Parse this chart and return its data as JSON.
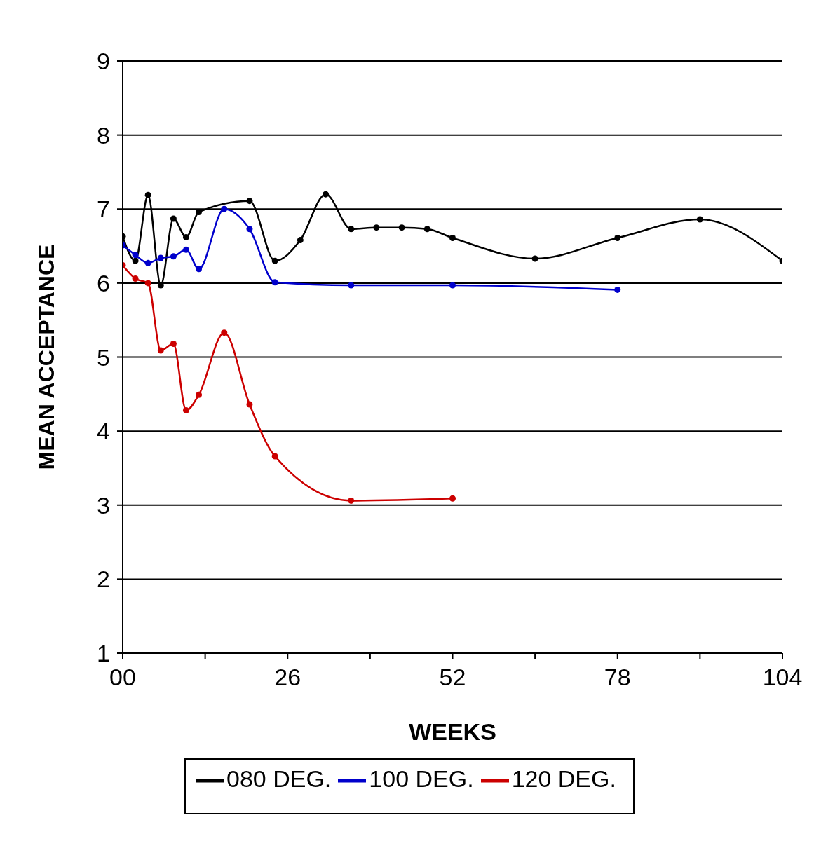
{
  "chart_data": {
    "type": "line",
    "xlabel": "WEEKS",
    "ylabel": "MEAN ACCEPTANCE",
    "xlim": [
      0,
      104
    ],
    "xticks": [
      {
        "value": 0,
        "label": "00"
      },
      {
        "value": 13,
        "label": null
      },
      26,
      {
        "value": 39,
        "label": null
      },
      52,
      {
        "value": 65,
        "label": null
      },
      78,
      {
        "value": 91,
        "label": null
      },
      104
    ],
    "ylim": [
      1,
      9
    ],
    "yticks": [
      1,
      2,
      3,
      4,
      5,
      6,
      7,
      8,
      9
    ],
    "grid": "y",
    "legend": "bottom",
    "marker": "circle",
    "line_style": "solid",
    "series": [
      {
        "name": "080 DEG.",
        "color": "#000000",
        "x": [
          0,
          2,
          4,
          6,
          8,
          10,
          12,
          20,
          24,
          28,
          32,
          36,
          40,
          44,
          48,
          52,
          65,
          78,
          91,
          104
        ],
        "values": [
          6.63,
          6.3,
          7.19,
          5.97,
          6.87,
          6.62,
          6.96,
          7.11,
          6.3,
          6.58,
          7.2,
          6.73,
          6.75,
          6.75,
          6.73,
          6.61,
          6.33,
          6.61,
          6.86,
          6.3
        ]
      },
      {
        "name": "100 DEG.",
        "color": "#0000cc",
        "x": [
          0,
          2,
          4,
          6,
          8,
          10,
          12,
          16,
          20,
          24,
          36,
          52,
          78
        ],
        "values": [
          6.51,
          6.38,
          6.27,
          6.34,
          6.36,
          6.45,
          6.19,
          7.0,
          6.73,
          6.01,
          5.97,
          5.97,
          5.91
        ]
      },
      {
        "name": "120 DEG.",
        "color": "#cc0000",
        "x": [
          0,
          2,
          4,
          6,
          8,
          10,
          12,
          16,
          20,
          24,
          36,
          52
        ],
        "values": [
          6.24,
          6.06,
          6.0,
          5.09,
          5.18,
          4.28,
          4.49,
          5.33,
          4.36,
          3.66,
          3.06,
          3.09
        ]
      }
    ]
  }
}
